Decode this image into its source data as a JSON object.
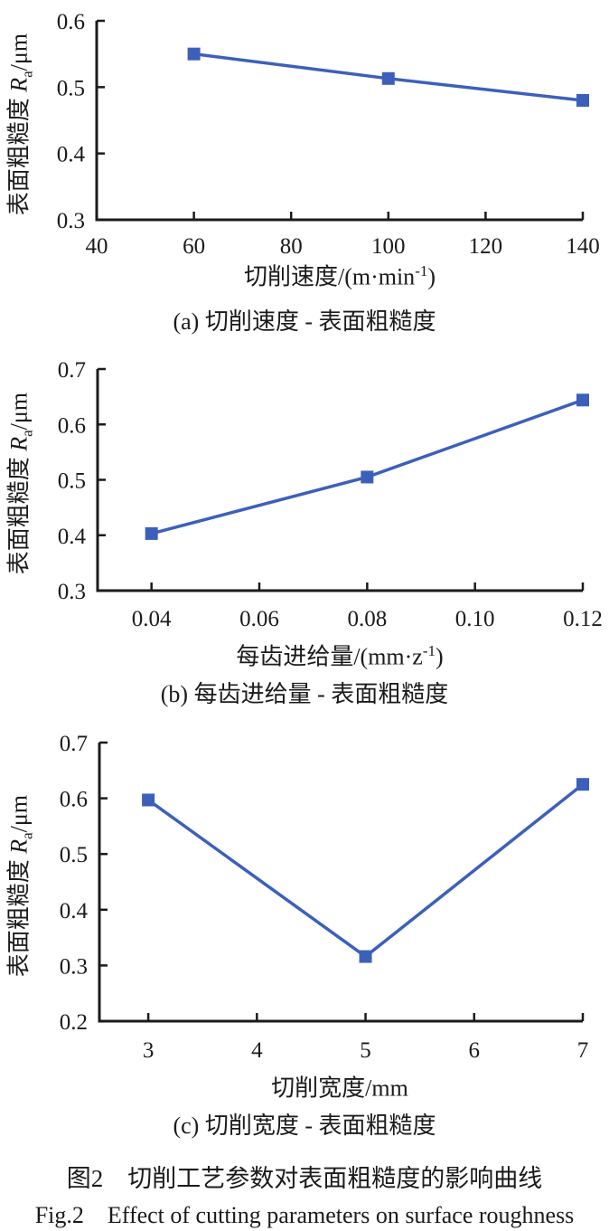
{
  "page": {
    "background": "#ffffff"
  },
  "colors": {
    "series_blue": "#3c60ba",
    "axis_black": "#1b1b1b"
  },
  "figure": {
    "caption_cn": "图2　切削工艺参数对表面粗糙度的影响曲线",
    "caption_en": "Fig.2　Effect of cutting parameters on surface roughness"
  },
  "chart_data": [
    {
      "id": "a",
      "type": "line",
      "caption": "(a) 切削速度 - 表面粗糙度",
      "xlabel": {
        "prefix": "切削速度/(m·min",
        "sup": "-1",
        "suffix": ")"
      },
      "ylabel": {
        "prefix": "表面粗糙度 ",
        "var": "R",
        "sub": "a",
        "suffix": "/μm"
      },
      "x": [
        60,
        100,
        140
      ],
      "y": [
        0.55,
        0.513,
        0.48
      ],
      "xticks": {
        "values": [
          40,
          60,
          80,
          100,
          120,
          140
        ],
        "labels": [
          "40",
          "60",
          "80",
          "100",
          "120",
          "140"
        ]
      },
      "yticks": {
        "values": [
          0.3,
          0.4,
          0.5,
          0.6
        ],
        "labels": [
          "0.3",
          "0.4",
          "0.5",
          "0.6"
        ]
      },
      "xlim": [
        40,
        140
      ],
      "ylim": [
        0.3,
        0.6
      ],
      "marker": "square",
      "grid": false,
      "legend": "none"
    },
    {
      "id": "b",
      "type": "line",
      "caption": "(b) 每齿进给量 - 表面粗糙度",
      "xlabel": {
        "prefix": "每齿进给量/(mm·z",
        "sup": "-1",
        "suffix": ")"
      },
      "ylabel": {
        "prefix": "表面粗糙度 ",
        "var": "R",
        "sub": "a",
        "suffix": "/μm"
      },
      "x": [
        0.04,
        0.08,
        0.12
      ],
      "y": [
        0.403,
        0.505,
        0.644
      ],
      "xticks": {
        "values": [
          0.04,
          0.06,
          0.08,
          0.1,
          0.12
        ],
        "labels": [
          "0.04",
          "0.06",
          "0.08",
          "0.10",
          "0.12"
        ]
      },
      "yticks": {
        "values": [
          0.3,
          0.4,
          0.5,
          0.6,
          0.7
        ],
        "labels": [
          "0.3",
          "0.4",
          "0.5",
          "0.6",
          "0.7"
        ]
      },
      "xlim": [
        0.03,
        0.12
      ],
      "ylim": [
        0.3,
        0.7
      ],
      "marker": "square",
      "grid": false,
      "legend": "none"
    },
    {
      "id": "c",
      "type": "line",
      "caption": "(c) 切削宽度 - 表面粗糙度",
      "xlabel": {
        "prefix": "切削宽度/mm",
        "sup": "",
        "suffix": ""
      },
      "ylabel": {
        "prefix": "表面粗糙度 ",
        "var": "R",
        "sub": "a",
        "suffix": "/μm"
      },
      "x": [
        3,
        5,
        7
      ],
      "y": [
        0.597,
        0.316,
        0.625
      ],
      "xticks": {
        "values": [
          3,
          4,
          5,
          6,
          7
        ],
        "labels": [
          "3",
          "4",
          "5",
          "6",
          "7"
        ]
      },
      "yticks": {
        "values": [
          0.2,
          0.3,
          0.4,
          0.5,
          0.6,
          0.7
        ],
        "labels": [
          "0.2",
          "0.3",
          "0.4",
          "0.5",
          "0.6",
          "0.7"
        ]
      },
      "xlim": [
        2.55,
        7
      ],
      "ylim": [
        0.2,
        0.7
      ],
      "marker": "square",
      "grid": false,
      "legend": "none"
    }
  ]
}
